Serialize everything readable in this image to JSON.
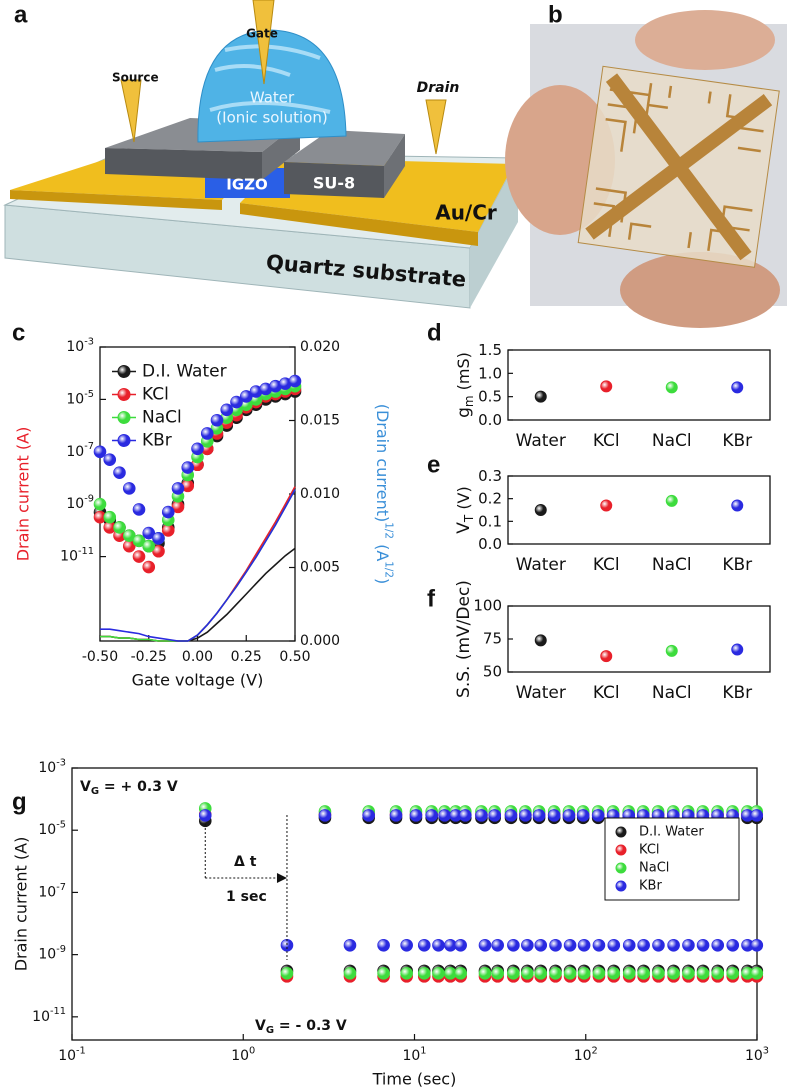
{
  "panels": {
    "a": "a",
    "b": "b",
    "c": "c",
    "d": "d",
    "e": "e",
    "f": "f",
    "g": "g"
  },
  "diagram": {
    "source": "Source",
    "gate": "Gate",
    "drain": "Drain",
    "water": "Water",
    "ionic": "(Ionic solution)",
    "igzo": "IGZO",
    "su8": "SU-8",
    "aucr": "Au/Cr",
    "quartz": "Quartz substrate"
  },
  "chart_data": [
    {
      "type": "scatter",
      "x_label": "Gate voltage (V)",
      "y_label": "Drain current (A)",
      "y_label_color": "#e8202a",
      "y2_label": [
        "(Drain current)",
        "1/2",
        " (A",
        "1/2",
        ")"
      ],
      "y2_label_color": "#3a8fd8",
      "x": [
        -0.5,
        -0.45,
        -0.4,
        -0.35,
        -0.3,
        -0.25,
        -0.2,
        -0.15,
        -0.1,
        -0.05,
        0,
        0.05,
        0.1,
        0.15,
        0.2,
        0.25,
        0.3,
        0.35,
        0.4,
        0.45,
        0.5
      ],
      "xlim": [
        -0.5,
        0.5
      ],
      "xticks": [
        {
          "value": -0.5,
          "label": "-0.50"
        },
        {
          "value": -0.25,
          "label": "-0.25"
        },
        {
          "value": 0,
          "label": "0.00"
        },
        {
          "value": 0.25,
          "label": "0.25"
        },
        {
          "value": 0.5,
          "label": "0.50"
        }
      ],
      "y_log": true,
      "ylim": [
        6e-15,
        0.001
      ],
      "yticks": [
        {
          "value": 0.001,
          "label": "10",
          "sup": "-3"
        },
        {
          "value": 1e-05,
          "label": "10",
          "sup": "-5"
        },
        {
          "value": 1e-07,
          "label": "10",
          "sup": "-7"
        },
        {
          "value": 1e-09,
          "label": "10",
          "sup": "-9"
        },
        {
          "value": 1e-11,
          "label": "10",
          "sup": "-11"
        }
      ],
      "y2lim": [
        0,
        0.02
      ],
      "y2ticks": [
        {
          "value": 0,
          "label": "0.000"
        },
        {
          "value": 0.005,
          "label": "0.005"
        },
        {
          "value": 0.01,
          "label": "0.010"
        },
        {
          "value": 0.015,
          "label": "0.015"
        },
        {
          "value": 0.02,
          "label": "0.020"
        }
      ],
      "legend": "upper left",
      "series": [
        {
          "name": "D.I. Water",
          "color": "#1a1a1a",
          "values": [
            5e-10,
            2.5e-10,
            1.3e-10,
            6.3e-11,
            4e-11,
            2.5e-11,
            3.2e-11,
            1.3e-10,
            1e-09,
            6.3e-09,
            3.2e-08,
            1.3e-07,
            4e-07,
            1e-06,
            2e-06,
            4e-06,
            6.3e-06,
            1e-05,
            1.3e-05,
            1.6e-05,
            2e-05
          ]
        },
        {
          "name": "KCl",
          "color": "#e8202a",
          "values": [
            3.2e-10,
            1.3e-10,
            6.3e-11,
            2.5e-11,
            1e-11,
            4e-12,
            1.6e-11,
            1e-10,
            7.9e-10,
            5e-09,
            3.2e-08,
            1.3e-07,
            5e-07,
            1.3e-06,
            2.5e-06,
            5e-06,
            7.9e-06,
            1.3e-05,
            1.6e-05,
            2e-05,
            2.5e-05
          ]
        },
        {
          "name": "NaCl",
          "color": "#3ddc3d",
          "values": [
            1e-09,
            3.2e-10,
            1.3e-10,
            6.3e-11,
            4e-11,
            2.5e-11,
            5e-11,
            2.5e-10,
            2e-09,
            1.3e-08,
            6.3e-08,
            2.5e-07,
            7.9e-07,
            2e-06,
            4e-06,
            6.3e-06,
            1e-05,
            1.6e-05,
            2e-05,
            2.5e-05,
            3.2e-05
          ]
        },
        {
          "name": "KBr",
          "color": "#2a2ae0",
          "values": [
            1e-07,
            5e-08,
            1.6e-08,
            4e-09,
            6.3e-10,
            7.9e-11,
            5e-11,
            5e-10,
            4e-09,
            2.5e-08,
            1.3e-07,
            5e-07,
            1.6e-06,
            4e-06,
            7.9e-06,
            1.3e-05,
            2e-05,
            2.5e-05,
            3.2e-05,
            4e-05,
            5e-05
          ]
        },
        {
          "axis": "y2",
          "color": "#1a1a1a",
          "values": [
            0.0003,
            0.0003,
            0.0002,
            0.0002,
            0.0001,
            0.0001,
            0,
            0,
            0,
            0,
            0.0002,
            0.0006,
            0.0012,
            0.0018,
            0.0025,
            0.0032,
            0.0039,
            0.0046,
            0.0052,
            0.0058,
            0.0063
          ]
        },
        {
          "axis": "y2",
          "color": "#e8202a",
          "values": [
            0.0003,
            0.0003,
            0.0002,
            0.0002,
            0.0001,
            0.0001,
            0,
            0,
            0,
            0,
            0.0004,
            0.0011,
            0.0019,
            0.0028,
            0.0038,
            0.0048,
            0.0059,
            0.007,
            0.0081,
            0.0093,
            0.0105
          ]
        },
        {
          "axis": "y2",
          "color": "#3ddc3d",
          "values": [
            0.0003,
            0.0003,
            0.0002,
            0.0002,
            0.0001,
            0.0001,
            0,
            0,
            0,
            0,
            0.0004,
            0.0011,
            0.0019,
            0.0028,
            0.0037,
            0.0047,
            0.0057,
            0.0068,
            0.0079,
            0.0091,
            0.0103
          ]
        },
        {
          "axis": "y2",
          "color": "#2a2ae0",
          "values": [
            0.0008,
            0.0008,
            0.0007,
            0.0006,
            0.0005,
            0.0003,
            0.0002,
            0.0001,
            0,
            0,
            0.0004,
            0.0011,
            0.0019,
            0.0028,
            0.0037,
            0.0047,
            0.0057,
            0.0068,
            0.0079,
            0.0091,
            0.0103
          ]
        }
      ]
    },
    {
      "type": "dot",
      "y_label": "g",
      "y_label_sub": "m",
      "y_label_unit": " (mS)",
      "categories": [
        "Water",
        "KCl",
        "NaCl",
        "KBr"
      ],
      "values": [
        0.5,
        0.72,
        0.7,
        0.7
      ],
      "colors": [
        "#1a1a1a",
        "#e8202a",
        "#3ddc3d",
        "#2a2ae0"
      ],
      "ylim": [
        0,
        1.5
      ],
      "yticks": [
        {
          "value": 0,
          "label": "0.0"
        },
        {
          "value": 0.5,
          "label": "0.5"
        },
        {
          "value": 1,
          "label": "1.0"
        },
        {
          "value": 1.5,
          "label": "1.5"
        }
      ]
    },
    {
      "type": "dot",
      "y_label": "V",
      "y_label_sub": "T",
      "y_label_unit": " (V)",
      "categories": [
        "Water",
        "KCl",
        "NaCl",
        "KBr"
      ],
      "values": [
        0.15,
        0.17,
        0.19,
        0.17
      ],
      "colors": [
        "#1a1a1a",
        "#e8202a",
        "#3ddc3d",
        "#2a2ae0"
      ],
      "ylim": [
        0,
        0.3
      ],
      "yticks": [
        {
          "value": 0,
          "label": "0.0"
        },
        {
          "value": 0.1,
          "label": "0.1"
        },
        {
          "value": 0.2,
          "label": "0.2"
        },
        {
          "value": 0.3,
          "label": "0.3"
        }
      ]
    },
    {
      "type": "dot",
      "y_label": "S.S. (mV/Dec)",
      "categories": [
        "Water",
        "KCl",
        "NaCl",
        "KBr"
      ],
      "values": [
        74,
        62,
        66,
        67
      ],
      "colors": [
        "#1a1a1a",
        "#e8202a",
        "#3ddc3d",
        "#2a2ae0"
      ],
      "ylim": [
        50,
        100
      ],
      "yticks": [
        50,
        75,
        100
      ]
    },
    {
      "type": "scatter",
      "x_label": "Time (sec)",
      "y_label": "Drain current (A)",
      "x_log": true,
      "xlim": [
        0.1,
        1000
      ],
      "xticks": [
        {
          "value": 0.1,
          "label": "10",
          "sup": "-1"
        },
        {
          "value": 1,
          "label": "10",
          "sup": "0"
        },
        {
          "value": 10,
          "label": "10",
          "sup": "1"
        },
        {
          "value": 100,
          "label": "10",
          "sup": "2"
        },
        {
          "value": 1000,
          "label": "10",
          "sup": "3"
        }
      ],
      "y_log": true,
      "ylim": [
        1.8e-12,
        0.001
      ],
      "yticks": [
        {
          "value": 0.001,
          "label": "10",
          "sup": "-3"
        },
        {
          "value": 1e-05,
          "label": "10",
          "sup": "-5"
        },
        {
          "value": 1e-07,
          "label": "10",
          "sup": "-7"
        },
        {
          "value": 1e-09,
          "label": "10",
          "sup": "-9"
        },
        {
          "value": 1e-11,
          "label": "10",
          "sup": "-11"
        }
      ],
      "legend": "center right",
      "annotations": [
        {
          "text": "V",
          "sub": "G",
          "rest": " = + 0.3 V"
        },
        {
          "text": "V",
          "sub": "G",
          "rest": " = - 0.3 V"
        },
        {
          "text": "Δ t"
        },
        {
          "text": "1 sec"
        }
      ],
      "x": [
        0.6,
        1.8,
        3.0,
        4.2,
        5.4,
        6.6,
        7.8,
        9.0,
        10.2,
        11.4,
        12.6,
        13.8,
        15.0,
        16.2,
        17.4,
        18.6,
        19.8,
        24.6,
        25.8,
        29.4,
        30.6,
        36.6,
        37.8,
        44.4,
        45.6,
        53.4,
        54.6,
        65.4,
        66.6,
        79.8,
        81.0,
        96.6,
        97.8,
        118.2,
        119.4,
        144.6,
        145.8,
        178.2,
        179.4,
        216.6,
        217.8,
        264.6,
        265.8,
        324.6,
        325.8,
        396.6,
        397.8,
        483.0,
        484.2,
        588.6,
        589.8,
        720.6,
        721.8,
        879.0,
        880.2,
        996.6,
        997.8
      ],
      "series": [
        {
          "name": "D.I. Water",
          "color": "#1a1a1a",
          "values": [
            2e-05,
            3e-10,
            2.5e-05,
            3e-10,
            2.5e-05,
            3e-10,
            2.5e-05,
            3e-10,
            2.5e-05,
            3e-10,
            2.5e-05,
            3e-10,
            2.5e-05,
            3e-10,
            2.5e-05,
            3e-10,
            2.5e-05,
            2.5e-05,
            3e-10,
            2.5e-05,
            3e-10,
            2.5e-05,
            3e-10,
            2.5e-05,
            3e-10,
            2.5e-05,
            3e-10,
            2.5e-05,
            3e-10,
            2.5e-05,
            3e-10,
            2.5e-05,
            3e-10,
            2.5e-05,
            3e-10,
            2.5e-05,
            3e-10,
            2.5e-05,
            3e-10,
            2.5e-05,
            3e-10,
            2.5e-05,
            3e-10,
            2.5e-05,
            3e-10,
            2.5e-05,
            3e-10,
            2.5e-05,
            3e-10,
            2.5e-05,
            3e-10,
            2.5e-05,
            3e-10,
            2.5e-05,
            3e-10,
            2.5e-05,
            3e-10
          ]
        },
        {
          "name": "KCl",
          "color": "#e8202a",
          "values": [
            3.2e-05,
            2e-10,
            3.2e-05,
            2e-10,
            3.2e-05,
            2e-10,
            3.2e-05,
            2e-10,
            3.2e-05,
            2e-10,
            3.2e-05,
            2e-10,
            3.2e-05,
            2e-10,
            3.2e-05,
            2e-10,
            3.2e-05,
            3.2e-05,
            2e-10,
            3.2e-05,
            2e-10,
            3.2e-05,
            2e-10,
            3.2e-05,
            2e-10,
            3.2e-05,
            2e-10,
            3.2e-05,
            2e-10,
            3.2e-05,
            2e-10,
            3.2e-05,
            2e-10,
            3.2e-05,
            2e-10,
            3.2e-05,
            2e-10,
            3.2e-05,
            2e-10,
            3.2e-05,
            2e-10,
            3.2e-05,
            2e-10,
            3.2e-05,
            2e-10,
            3.2e-05,
            2e-10,
            3.2e-05,
            2e-10,
            3.2e-05,
            2e-10,
            3.2e-05,
            2e-10,
            3.2e-05,
            2e-10,
            3.2e-05,
            2e-10
          ]
        },
        {
          "name": "NaCl",
          "color": "#3ddc3d",
          "values": [
            5e-05,
            2.5e-10,
            4e-05,
            2.5e-10,
            4e-05,
            2.5e-10,
            4e-05,
            2.5e-10,
            4e-05,
            2.5e-10,
            4e-05,
            2.5e-10,
            4e-05,
            2.5e-10,
            4e-05,
            2.5e-10,
            4e-05,
            4e-05,
            2.5e-10,
            4e-05,
            2.5e-10,
            4e-05,
            2.5e-10,
            4e-05,
            2.5e-10,
            4e-05,
            2.5e-10,
            4e-05,
            2.5e-10,
            4e-05,
            2.5e-10,
            4e-05,
            2.5e-10,
            4e-05,
            2.5e-10,
            4e-05,
            2.5e-10,
            4e-05,
            2.5e-10,
            4e-05,
            2.5e-10,
            4e-05,
            2.5e-10,
            4e-05,
            2.5e-10,
            4e-05,
            2.5e-10,
            4e-05,
            2.5e-10,
            4e-05,
            2.5e-10,
            4e-05,
            2.5e-10,
            4e-05,
            2.5e-10,
            4e-05,
            2.5e-10
          ]
        },
        {
          "name": "KBr",
          "color": "#2a2ae0",
          "values": [
            3e-05,
            2e-09,
            3e-05,
            2e-09,
            3e-05,
            2e-09,
            3e-05,
            2e-09,
            3e-05,
            2e-09,
            3e-05,
            2e-09,
            3e-05,
            2e-09,
            3e-05,
            2e-09,
            3e-05,
            3e-05,
            2e-09,
            3e-05,
            2e-09,
            3e-05,
            2e-09,
            3e-05,
            2e-09,
            3e-05,
            2e-09,
            3e-05,
            2e-09,
            3e-05,
            2e-09,
            3e-05,
            2e-09,
            3e-05,
            2e-09,
            3e-05,
            2e-09,
            3e-05,
            2e-09,
            3e-05,
            2e-09,
            3e-05,
            2e-09,
            3e-05,
            2e-09,
            3e-05,
            2e-09,
            3e-05,
            2e-09,
            3e-05,
            2e-09,
            3e-05,
            2e-09,
            3e-05,
            2e-09,
            3e-05,
            2e-09
          ]
        }
      ]
    }
  ]
}
